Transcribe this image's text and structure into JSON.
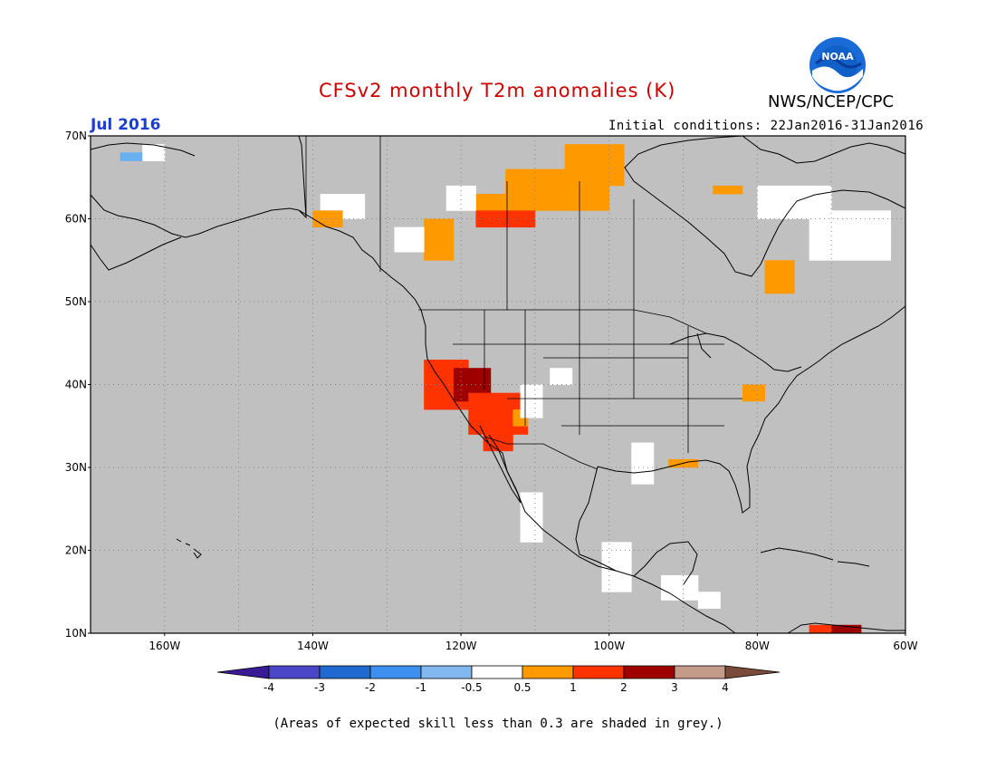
{
  "header": {
    "title": "CFSv2 monthly T2m anomalies (K)",
    "agency": "NWS/NCEP/CPC",
    "logo_text": "NOAA",
    "month": "Jul 2016",
    "initial_conditions": "Initial conditions: 22Jan2016-31Jan2016"
  },
  "colors": {
    "title": "#cc0000",
    "month": "#1a3fd0",
    "ocean_grey": "#c0c0c0",
    "white_anomaly": "#ffffff",
    "light_orange": "#ff9900",
    "orange_red": "#ff3300",
    "dark_red": "#9e0000",
    "light_blue": "#6ab0f0",
    "purple": "#5030c0"
  },
  "map": {
    "region": "North America",
    "lon_range": [
      -170,
      -60
    ],
    "lat_range": [
      10,
      70
    ],
    "lat_labels": [
      "70N",
      "60N",
      "50N",
      "40N",
      "30N",
      "20N",
      "10N"
    ],
    "lon_labels": [
      "160W",
      "140W",
      "120W",
      "100W",
      "80W",
      "60W"
    ]
  },
  "colorbar": {
    "labels": [
      "-4",
      "-3",
      "-2",
      "-1",
      "-0.5",
      "0.5",
      "1",
      "2",
      "3",
      "4"
    ],
    "colors": [
      "#3a1b96",
      "#4a46c8",
      "#2069d0",
      "#3d8ff0",
      "#82b8f0",
      "#ffffff",
      "#ff9900",
      "#ff3300",
      "#9e0000",
      "#c49a88",
      "#7a4a3a"
    ]
  },
  "footer": {
    "note": "(Areas of expected skill less than 0.3 are shaded in grey.)"
  }
}
